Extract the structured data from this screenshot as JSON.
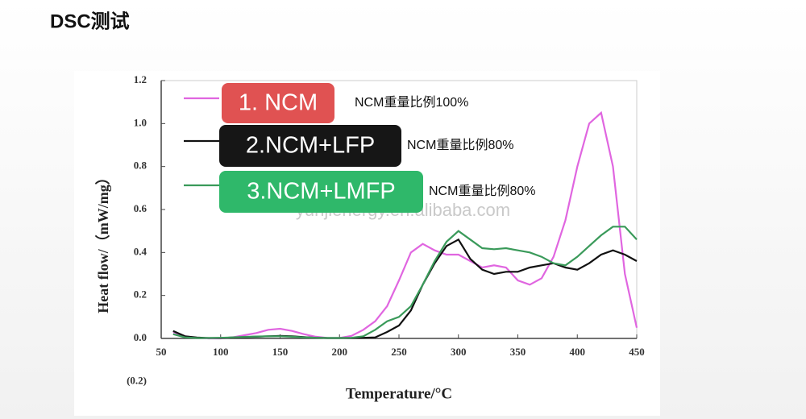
{
  "header": {
    "title": "DSC测试"
  },
  "chart_data": {
    "type": "line",
    "x_label": "Temperature/°C",
    "y_label": "Heat flow/（mW/mg）",
    "watermark": "yunjienergy.en.alibaba.com",
    "annotations": [
      "NCM重量比例100%",
      "NCM重量比例80%",
      "NCM重量比例80%"
    ],
    "x": [
      60,
      70,
      80,
      90,
      100,
      110,
      120,
      130,
      140,
      150,
      160,
      170,
      180,
      190,
      200,
      210,
      220,
      230,
      240,
      250,
      260,
      270,
      280,
      290,
      300,
      310,
      320,
      330,
      340,
      350,
      360,
      370,
      380,
      390,
      400,
      410,
      420,
      430,
      440,
      450
    ],
    "series": [
      {
        "name": "1. NCM",
        "color": "#e066e0",
        "legend_color": "#e05252",
        "values": [
          0.03,
          0.01,
          0.003,
          0,
          0,
          0.005,
          0.015,
          0.025,
          0.04,
          0.045,
          0.035,
          0.02,
          0.008,
          0.002,
          0.002,
          0.012,
          0.04,
          0.08,
          0.15,
          0.27,
          0.4,
          0.44,
          0.41,
          0.39,
          0.39,
          0.36,
          0.33,
          0.34,
          0.33,
          0.27,
          0.25,
          0.28,
          0.38,
          0.55,
          0.8,
          1.0,
          1.05,
          0.8,
          0.3,
          0.05
        ]
      },
      {
        "name": "2.NCM+LFP",
        "color": "#111111",
        "legend_color": "#161616",
        "values": [
          0.035,
          0.01,
          0.004,
          0.002,
          0.002,
          0.004,
          0.006,
          0.008,
          0.01,
          0.012,
          0.01,
          0.006,
          0.003,
          0.002,
          0.002,
          0.002,
          0.003,
          0.005,
          0.03,
          0.06,
          0.13,
          0.25,
          0.35,
          0.43,
          0.46,
          0.37,
          0.32,
          0.3,
          0.31,
          0.31,
          0.33,
          0.34,
          0.35,
          0.33,
          0.32,
          0.35,
          0.39,
          0.41,
          0.39,
          0.36
        ]
      },
      {
        "name": "3.NCM+LMFP",
        "color": "#3a9a5a",
        "legend_color": "#2fb86a",
        "values": [
          0.02,
          0.005,
          0.002,
          0.002,
          0.003,
          0.005,
          0.007,
          0.009,
          0.01,
          0.01,
          0.008,
          0.005,
          0.003,
          0.002,
          0.002,
          0.003,
          0.01,
          0.04,
          0.08,
          0.1,
          0.15,
          0.25,
          0.36,
          0.45,
          0.5,
          0.46,
          0.42,
          0.415,
          0.42,
          0.41,
          0.4,
          0.38,
          0.35,
          0.34,
          0.38,
          0.43,
          0.48,
          0.52,
          0.52,
          0.46
        ]
      }
    ],
    "xlim": [
      50,
      450
    ],
    "xticks": [
      50,
      100,
      150,
      200,
      250,
      300,
      350,
      400,
      450
    ],
    "ylim": [
      0,
      1.2
    ],
    "yticks": [
      {
        "value": -0.2,
        "label": "(0.2)"
      },
      {
        "value": 0,
        "label": "0.0"
      },
      0.2,
      0.4,
      0.6,
      0.8,
      {
        "value": 1,
        "label": "1.0"
      },
      1.2
    ],
    "grid": false
  }
}
